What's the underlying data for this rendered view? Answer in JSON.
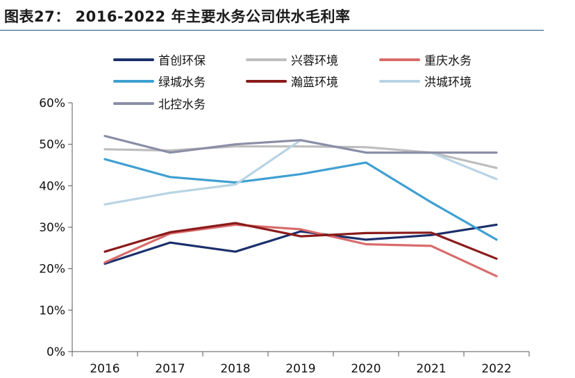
{
  "header": {
    "title": "图表27： 2016-2022 年主要水务公司供水毛利率"
  },
  "chart_data": {
    "type": "line",
    "title": "2016-2022 年主要水务公司供水毛利率",
    "xlabel": "",
    "ylabel": "",
    "categories": [
      "2016",
      "2017",
      "2018",
      "2019",
      "2020",
      "2021",
      "2022"
    ],
    "ylim": [
      0,
      60
    ],
    "yticks": [
      "0%",
      "10%",
      "20%",
      "30%",
      "40%",
      "50%",
      "60%"
    ],
    "grid": false,
    "legend_position": "top",
    "series": [
      {
        "name": "首创环保",
        "color": "#1b2f6b",
        "values": [
          21.2,
          26.3,
          24.1,
          29.0,
          27.0,
          28.1,
          30.6
        ]
      },
      {
        "name": "兴蓉环境",
        "color": "#bdbdbd",
        "values": [
          48.8,
          48.5,
          49.5,
          49.5,
          49.3,
          48.0,
          44.3
        ]
      },
      {
        "name": "重庆水务",
        "color": "#d96b6b",
        "values": [
          21.5,
          28.5,
          30.6,
          29.5,
          25.9,
          25.5,
          18.2
        ]
      },
      {
        "name": "绿城水务",
        "color": "#3f9fd1",
        "values": [
          46.4,
          42.1,
          40.8,
          42.8,
          45.6,
          36.0,
          27.0
        ]
      },
      {
        "name": "瀚蓝环境",
        "color": "#8b1a1a",
        "values": [
          24.1,
          28.8,
          31.0,
          27.8,
          28.6,
          28.7,
          22.4
        ]
      },
      {
        "name": "洪城环境",
        "color": "#b8d4e4",
        "values": [
          35.5,
          38.3,
          40.3,
          51.0,
          48.0,
          48.0,
          41.6
        ]
      },
      {
        "name": "北控水务",
        "color": "#8a8ea6",
        "values": [
          52.0,
          48.0,
          50.0,
          51.0,
          48.0,
          48.0,
          48.0
        ]
      }
    ]
  }
}
